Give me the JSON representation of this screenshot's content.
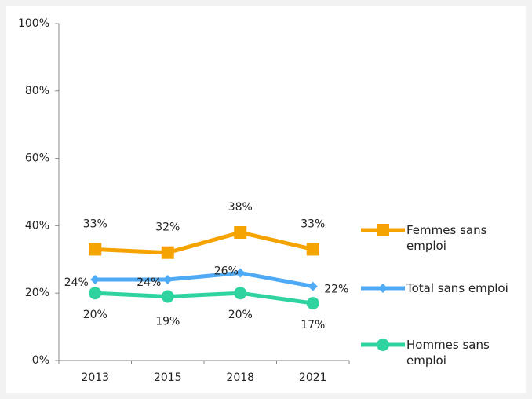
{
  "chart_data": {
    "type": "line",
    "categories": [
      "2013",
      "2015",
      "2018",
      "2021"
    ],
    "ylim": [
      0,
      100
    ],
    "yticks": [
      {
        "value": 0,
        "label": "0%"
      },
      {
        "value": 20,
        "label": "20%"
      },
      {
        "value": 40,
        "label": "40%"
      },
      {
        "value": 60,
        "label": "60%"
      },
      {
        "value": 80,
        "label": "80%"
      },
      {
        "value": 100,
        "label": "100%"
      }
    ],
    "series": [
      {
        "name": "Femmes sans emploi",
        "color": "#f5a300",
        "marker": "square",
        "values": [
          33,
          32,
          38,
          33
        ],
        "value_labels": [
          "33%",
          "32%",
          "38%",
          "33%"
        ]
      },
      {
        "name": "Total sans emploi",
        "color": "#4faaf5",
        "marker": "diamond",
        "values": [
          24,
          24,
          26,
          22
        ],
        "value_labels": [
          "24%",
          "24%",
          "26%",
          "22%"
        ]
      },
      {
        "name": "Hommes sans emploi",
        "color": "#2fd3a0",
        "marker": "circle",
        "values": [
          20,
          19,
          20,
          17
        ],
        "value_labels": [
          "20%",
          "19%",
          "20%",
          "17%"
        ]
      }
    ]
  }
}
